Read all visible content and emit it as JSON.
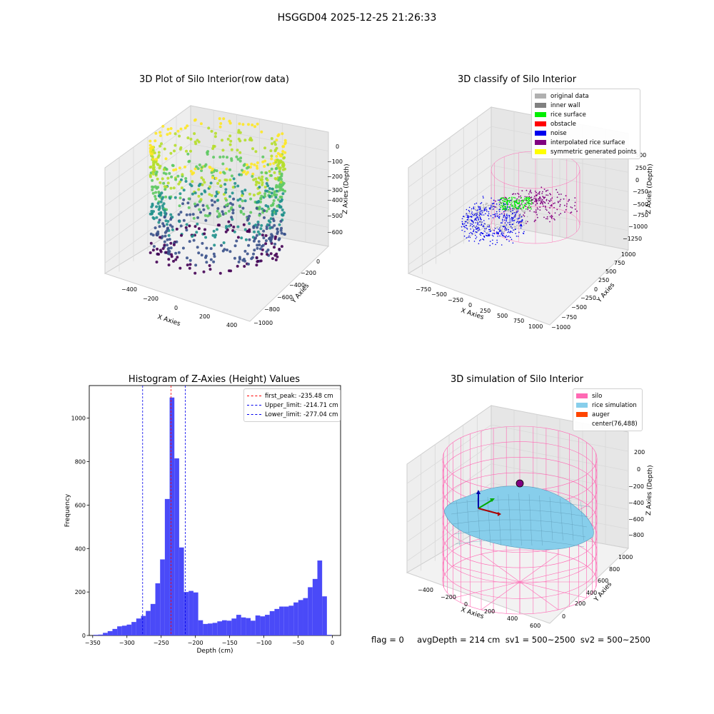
{
  "suptitle": "HSGGD04 2025-12-25 21:26:33",
  "status_line": "flag = 0     avgDepth = 214 cm  sv1 = 500~2500  sv2 = 500~2500",
  "colors": {
    "original_data": "#b0b0b0",
    "inner_wall": "#808080",
    "rice_surface": "#00ee00",
    "obstacle": "#ff0000",
    "noise": "#0000ee",
    "interpolated_rice_surface": "#800080",
    "symmetric_generated_points": "#ffff00",
    "silo": "#ff69b4",
    "rice_simulation": "#87ceeb",
    "auger": "#ff4500",
    "histogram_bar": "#4a4af8"
  },
  "chart_data": [
    {
      "type": "scatter",
      "dimension": "3d",
      "title": "3D Plot of Silo Interior(row data)",
      "xlabel": "X Axies",
      "ylabel": "Y Axies",
      "zlabel": "Z Axies (Depth)",
      "x_ticks": [
        "−400",
        "−200",
        "0",
        "200",
        "400"
      ],
      "y_ticks": [
        "−1000",
        "−800",
        "−600",
        "−400",
        "−200",
        "0"
      ],
      "z_ticks": [
        "−600",
        "−500",
        "−400",
        "−300",
        "−200",
        "−100",
        "0"
      ],
      "colormap": "viridis"
    },
    {
      "type": "scatter",
      "dimension": "3d",
      "title": "3D classify of Silo Interior",
      "xlabel": "X Axies",
      "ylabel": "Y Axies",
      "zlabel": "Z Axies (Depth)",
      "x_ticks": [
        "−750",
        "−500",
        "−250",
        "0",
        "250",
        "500",
        "750",
        "1000"
      ],
      "y_ticks": [
        "−1000",
        "−750",
        "−500",
        "−250",
        "0",
        "250",
        "500",
        "750",
        "1000"
      ],
      "z_ticks": [
        "−1250",
        "−1000",
        "−750",
        "−500",
        "−250",
        "0",
        "250",
        "500"
      ],
      "legend": [
        "original data",
        "inner wall",
        "rice surface",
        "obstacle",
        "noise",
        "interpolated rice surface",
        "symmetric generated points"
      ],
      "legend_position": "top-right"
    },
    {
      "type": "bar",
      "title": "Histogram of Z-Axies (Height) Values",
      "xlabel": "Depth (cm)",
      "ylabel": "Frequency",
      "xlim": [
        -355,
        12
      ],
      "ylim": [
        0,
        1150
      ],
      "x_ticks": [
        -350,
        -300,
        -250,
        -200,
        -150,
        -100,
        -50,
        0
      ],
      "x_tick_labels": [
        "−350",
        "−300",
        "−250",
        "−200",
        "−150",
        "−100",
        "−50",
        "0"
      ],
      "y_ticks": [
        0,
        200,
        400,
        600,
        800,
        1000
      ],
      "y_tick_labels": [
        "0",
        "200",
        "400",
        "600",
        "800",
        "1000"
      ],
      "bin_start": -349,
      "bin_width": 6.96,
      "values": [
        3,
        4,
        12,
        20,
        30,
        42,
        45,
        50,
        62,
        78,
        90,
        113,
        145,
        240,
        350,
        628,
        1095,
        815,
        405,
        200,
        205,
        198,
        70,
        53,
        55,
        58,
        65,
        70,
        68,
        78,
        95,
        83,
        80,
        68,
        92,
        88,
        95,
        112,
        122,
        133,
        133,
        137,
        152,
        163,
        172,
        222,
        260,
        345,
        180,
        3
      ],
      "vlines": [
        {
          "x": -235.48,
          "label": "first_peak: -235.48 cm",
          "color": "#ff0000"
        },
        {
          "x": -214.71,
          "label": "Upper_limit: -214.71 cm",
          "color": "#0000ee"
        },
        {
          "x": -277.04,
          "label": "Lower_limit: -277.04 cm",
          "color": "#0000ee"
        }
      ],
      "legend_position": "top-right"
    },
    {
      "type": "area",
      "dimension": "3d",
      "title": "3D simulation of Silo Interior",
      "xlabel": "X Axies",
      "ylabel": "Y Axies",
      "zlabel": "Z Axies (Depth)",
      "x_ticks": [
        "−400",
        "−200",
        "0",
        "200",
        "400",
        "600"
      ],
      "y_ticks": [
        "0",
        "200",
        "400",
        "600",
        "800",
        "1000"
      ],
      "z_ticks": [
        "−800",
        "−600",
        "−400",
        "−200",
        "0",
        "200"
      ],
      "legend": [
        "silo",
        "rice simulation",
        "auger",
        "center(76,488)"
      ],
      "legend_position": "top-right"
    }
  ]
}
